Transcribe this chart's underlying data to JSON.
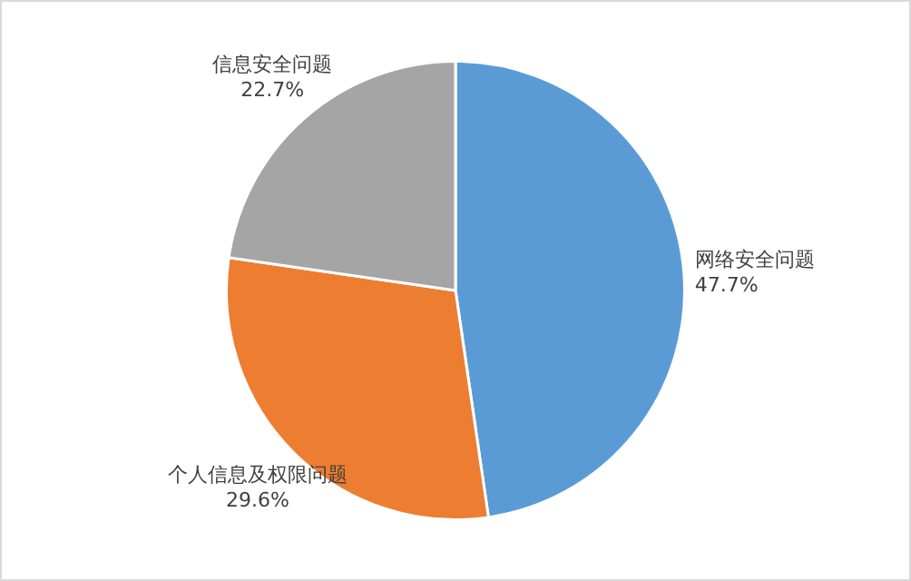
{
  "chart_data": {
    "type": "pie",
    "categories": [
      "网络安全问题",
      "个人信息及权限问题",
      "信息安全问题"
    ],
    "values": [
      47.7,
      29.6,
      22.7
    ],
    "colors": [
      "#5b9bd5",
      "#ed7d31",
      "#a5a5a5"
    ],
    "value_labels": [
      "47.7%",
      "29.6%",
      "22.7%"
    ],
    "legend": false
  }
}
